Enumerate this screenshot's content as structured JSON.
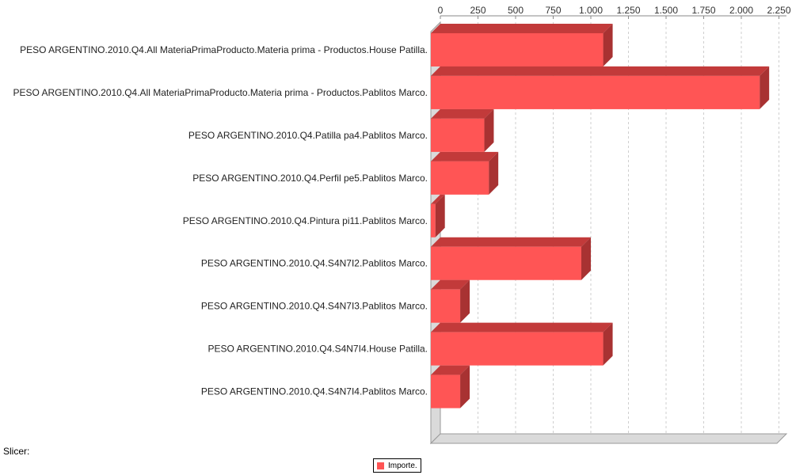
{
  "chart_data": {
    "type": "bar",
    "orientation": "horizontal",
    "categories": [
      "PESO ARGENTINO.2010.Q4.All MateriaPrimaProducto.Materia prima - Productos.House Patilla.",
      "PESO ARGENTINO.2010.Q4.All MateriaPrimaProducto.Materia prima - Productos.Pablitos Marco.",
      "PESO ARGENTINO.2010.Q4.Patilla pa4.Pablitos Marco.",
      "PESO ARGENTINO.2010.Q4.Perfil pe5.Pablitos Marco.",
      "PESO ARGENTINO.2010.Q4.Pintura pi11.Pablitos Marco.",
      "PESO ARGENTINO.2010.Q4.S4N7I2.Pablitos Marco.",
      "PESO ARGENTINO.2010.Q4.S4N7I3.Pablitos Marco.",
      "PESO ARGENTINO.2010.Q4.S4N7I4.House Patilla.",
      "PESO ARGENTINO.2010.Q4.S4N7I4.Pablitos Marco."
    ],
    "series": [
      {
        "name": "Importe.",
        "color": "#ff5555",
        "values": [
          1145,
          2185,
          355,
          385,
          30,
          1000,
          195,
          1145,
          195
        ]
      }
    ],
    "xlim": [
      0,
      2300
    ],
    "ticks": [
      0,
      250,
      500,
      750,
      1000,
      1250,
      1500,
      1750,
      2000,
      2250
    ],
    "tick_labels": [
      "0",
      "250",
      "500",
      "750",
      "1.000",
      "1.250",
      "1.500",
      "1.750",
      "2.000",
      "2.250"
    ],
    "axis_position": "top",
    "grid": true,
    "legend_position": "bottom",
    "style": "3d"
  },
  "slicer_label": "Slicer:",
  "legend": {
    "label": "Importe.",
    "color": "#ff5555"
  }
}
